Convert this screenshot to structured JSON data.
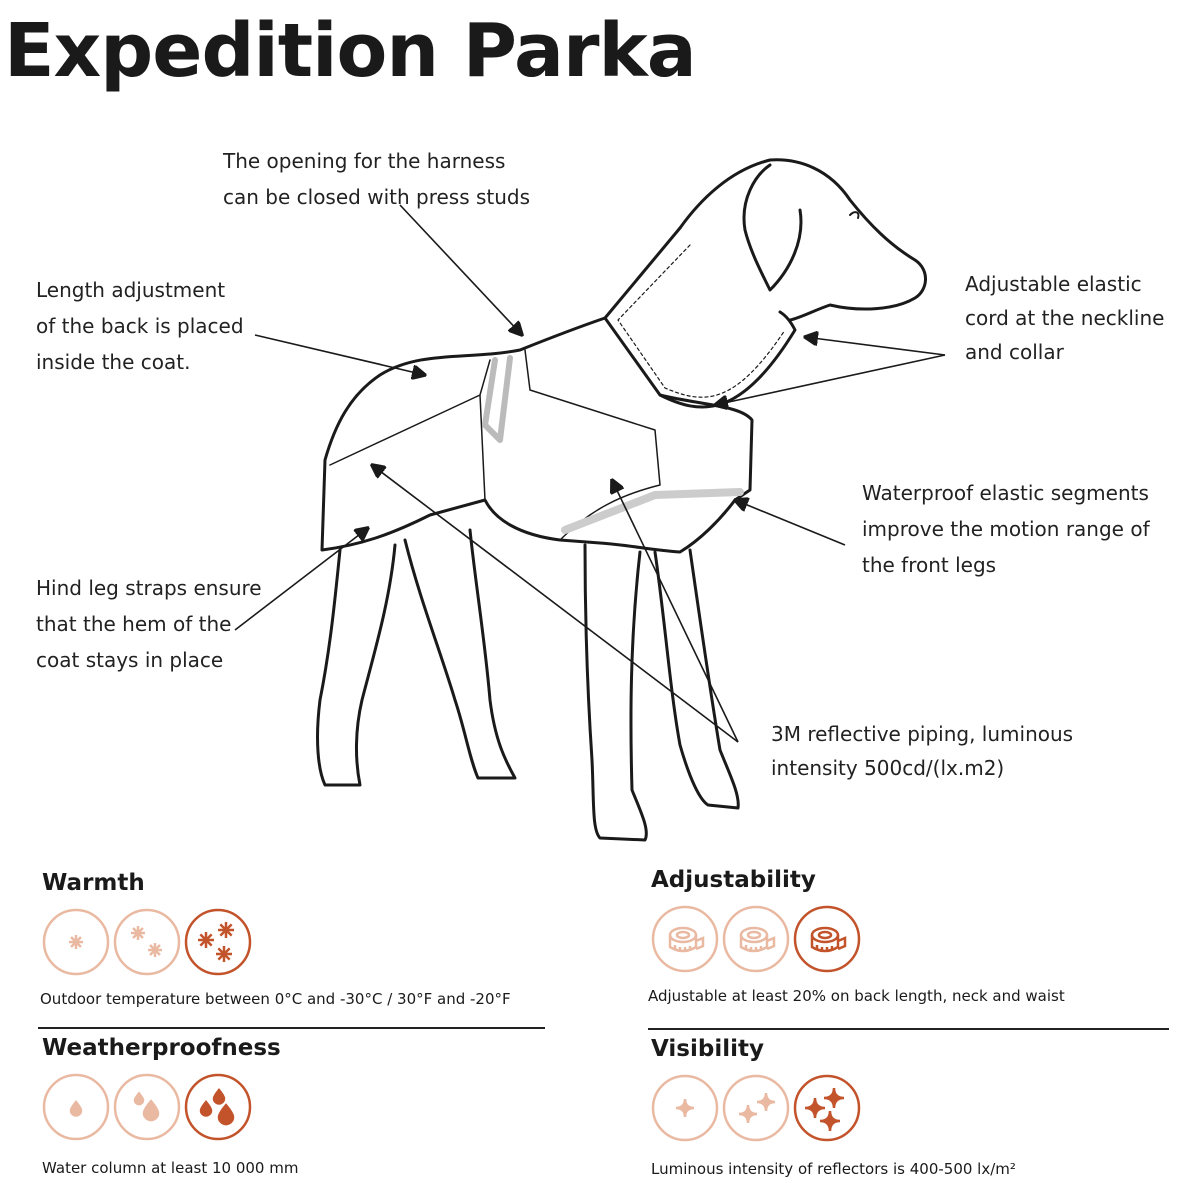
{
  "title": "Expedition Parka",
  "annotations": {
    "harness": "The opening for the harness\ncan be closed with press studs",
    "length": "Length adjustment\nof the back is placed\ninside the coat.",
    "elastic_cord": "Adjustable elastic\ncord at the neckline\nand collar",
    "waterproof": "Waterproof elastic segments\nimprove the motion range of\nthe front legs",
    "hind_leg": "Hind leg straps ensure\nthat the hem of the\ncoat stays in place",
    "reflective": "3M reflective piping, luminous\nintensity 500cd/(lx.m2)"
  },
  "colors": {
    "light": "#e9b9a2",
    "dark": "#c2532a",
    "ink": "#1a1a1a"
  },
  "features": [
    {
      "name": "Warmth",
      "icon": "snowflake-icon",
      "level": 3,
      "max": 3,
      "description": "Outdoor temperature between 0°C and -30°C / 30°F  and -20°F"
    },
    {
      "name": "Weatherproofness",
      "icon": "water-drop-icon",
      "level": 3,
      "max": 3,
      "description": "Water column at least 10 000 mm"
    },
    {
      "name": "Adjustability",
      "icon": "measuring-tape-icon",
      "level": 3,
      "max": 3,
      "description": "Adjustable at least 20% on back length, neck and waist"
    },
    {
      "name": "Visibility",
      "icon": "sparkle-icon",
      "level": 3,
      "max": 3,
      "description": "Luminous intensity of reflectors is 400-500 lx/m²"
    }
  ]
}
